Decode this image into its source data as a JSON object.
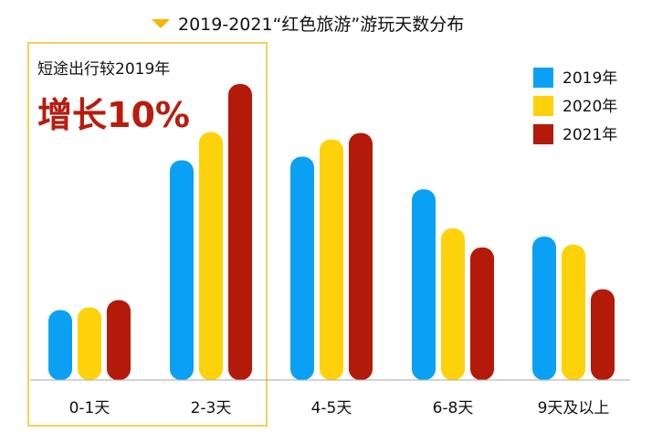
{
  "chart_data": {
    "type": "bar",
    "title": "2019-2021“红色旅游”游玩天数分布",
    "categories": [
      "0-1天",
      "2-3天",
      "4-5天",
      "6-8天",
      "9天及以上"
    ],
    "series": [
      {
        "name": "2019年",
        "color": "#0aa1f5",
        "values": [
          77,
          242,
          246,
          210,
          158
        ]
      },
      {
        "name": "2020年",
        "color": "#fdd20a",
        "values": [
          80,
          273,
          265,
          167,
          149
        ]
      },
      {
        "name": "2021年",
        "color": "#b31a0a",
        "values": [
          88,
          326,
          272,
          146,
          100
        ]
      }
    ],
    "ylim": [
      0,
      330
    ],
    "xlabel": "",
    "ylabel": "",
    "legend_position": "top-right",
    "annotation": {
      "subtitle": "短途出行较2019年",
      "headline": "增长10%",
      "highlight_categories": [
        "0-1天",
        "2-3天"
      ],
      "border_color": "#f2d15c"
    },
    "title_marker_color": "#f5b800"
  }
}
